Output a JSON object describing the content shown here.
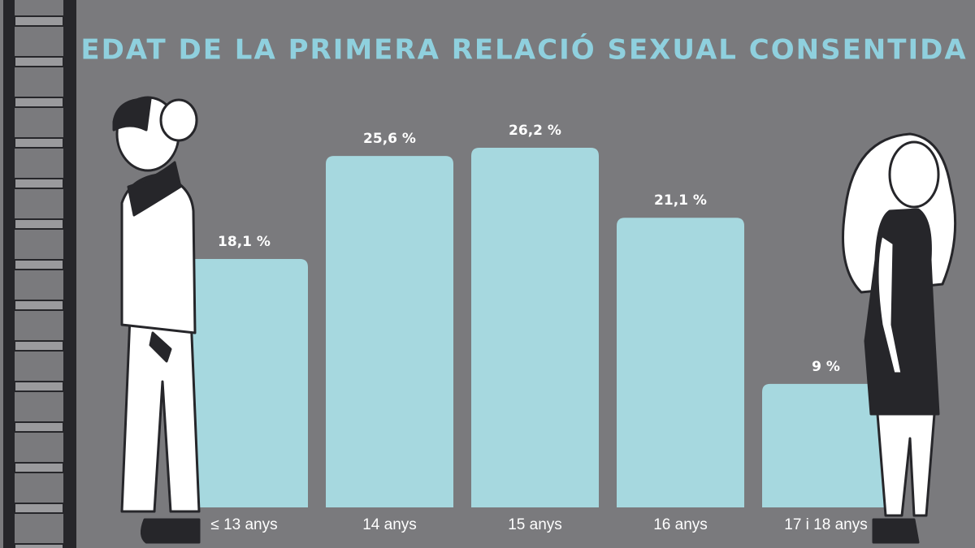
{
  "chart_data": {
    "type": "bar",
    "title": "EDAT DE LA PRIMERA RELACIÓ SEXUAL CONSENTIDA",
    "categories": [
      "≤ 13 anys",
      "14 anys",
      "15 anys",
      "16 anys",
      "17 i 18 anys"
    ],
    "values": [
      18.1,
      25.6,
      26.2,
      21.1,
      9
    ],
    "value_labels": [
      "18,1 %",
      "25,6 %",
      "26,2 %",
      "21,1 %",
      "9 %"
    ],
    "color": "#a6d8df"
  }
}
